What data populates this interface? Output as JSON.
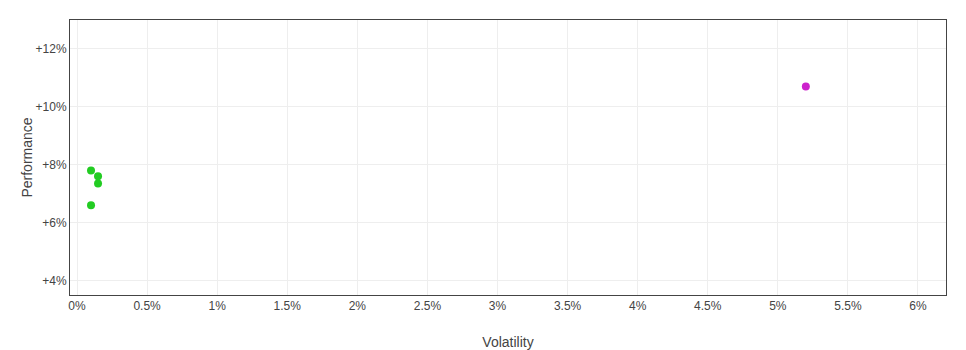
{
  "chart_data": {
    "type": "scatter",
    "xlabel": "Volatility",
    "ylabel": "Performance",
    "xlim": [
      -0.0005,
      0.062
    ],
    "ylim": [
      0.035,
      0.13
    ],
    "xticks": [
      {
        "value": 0.0,
        "label": "0%"
      },
      {
        "value": 0.005,
        "label": "0.5%"
      },
      {
        "value": 0.01,
        "label": "1%"
      },
      {
        "value": 0.015,
        "label": "1.5%"
      },
      {
        "value": 0.02,
        "label": "2%"
      },
      {
        "value": 0.025,
        "label": "2.5%"
      },
      {
        "value": 0.03,
        "label": "3%"
      },
      {
        "value": 0.035,
        "label": "3.5%"
      },
      {
        "value": 0.04,
        "label": "4%"
      },
      {
        "value": 0.045,
        "label": "4.5%"
      },
      {
        "value": 0.05,
        "label": "5%"
      },
      {
        "value": 0.055,
        "label": "5.5%"
      },
      {
        "value": 0.06,
        "label": "6%"
      }
    ],
    "yticks": [
      {
        "value": 0.04,
        "label": "+4%"
      },
      {
        "value": 0.06,
        "label": "+6%"
      },
      {
        "value": 0.08,
        "label": "+8%"
      },
      {
        "value": 0.1,
        "label": "+10%"
      },
      {
        "value": 0.12,
        "label": "+12%"
      }
    ],
    "grid": true,
    "series": [
      {
        "color": "#22cc22",
        "x": [
          0.001,
          0.0015,
          0.0015,
          0.001
        ],
        "values": [
          0.078,
          0.076,
          0.0735,
          0.066
        ]
      },
      {
        "color": "#cc22cc",
        "x": [
          0.052
        ],
        "values": [
          0.107
        ]
      }
    ]
  }
}
